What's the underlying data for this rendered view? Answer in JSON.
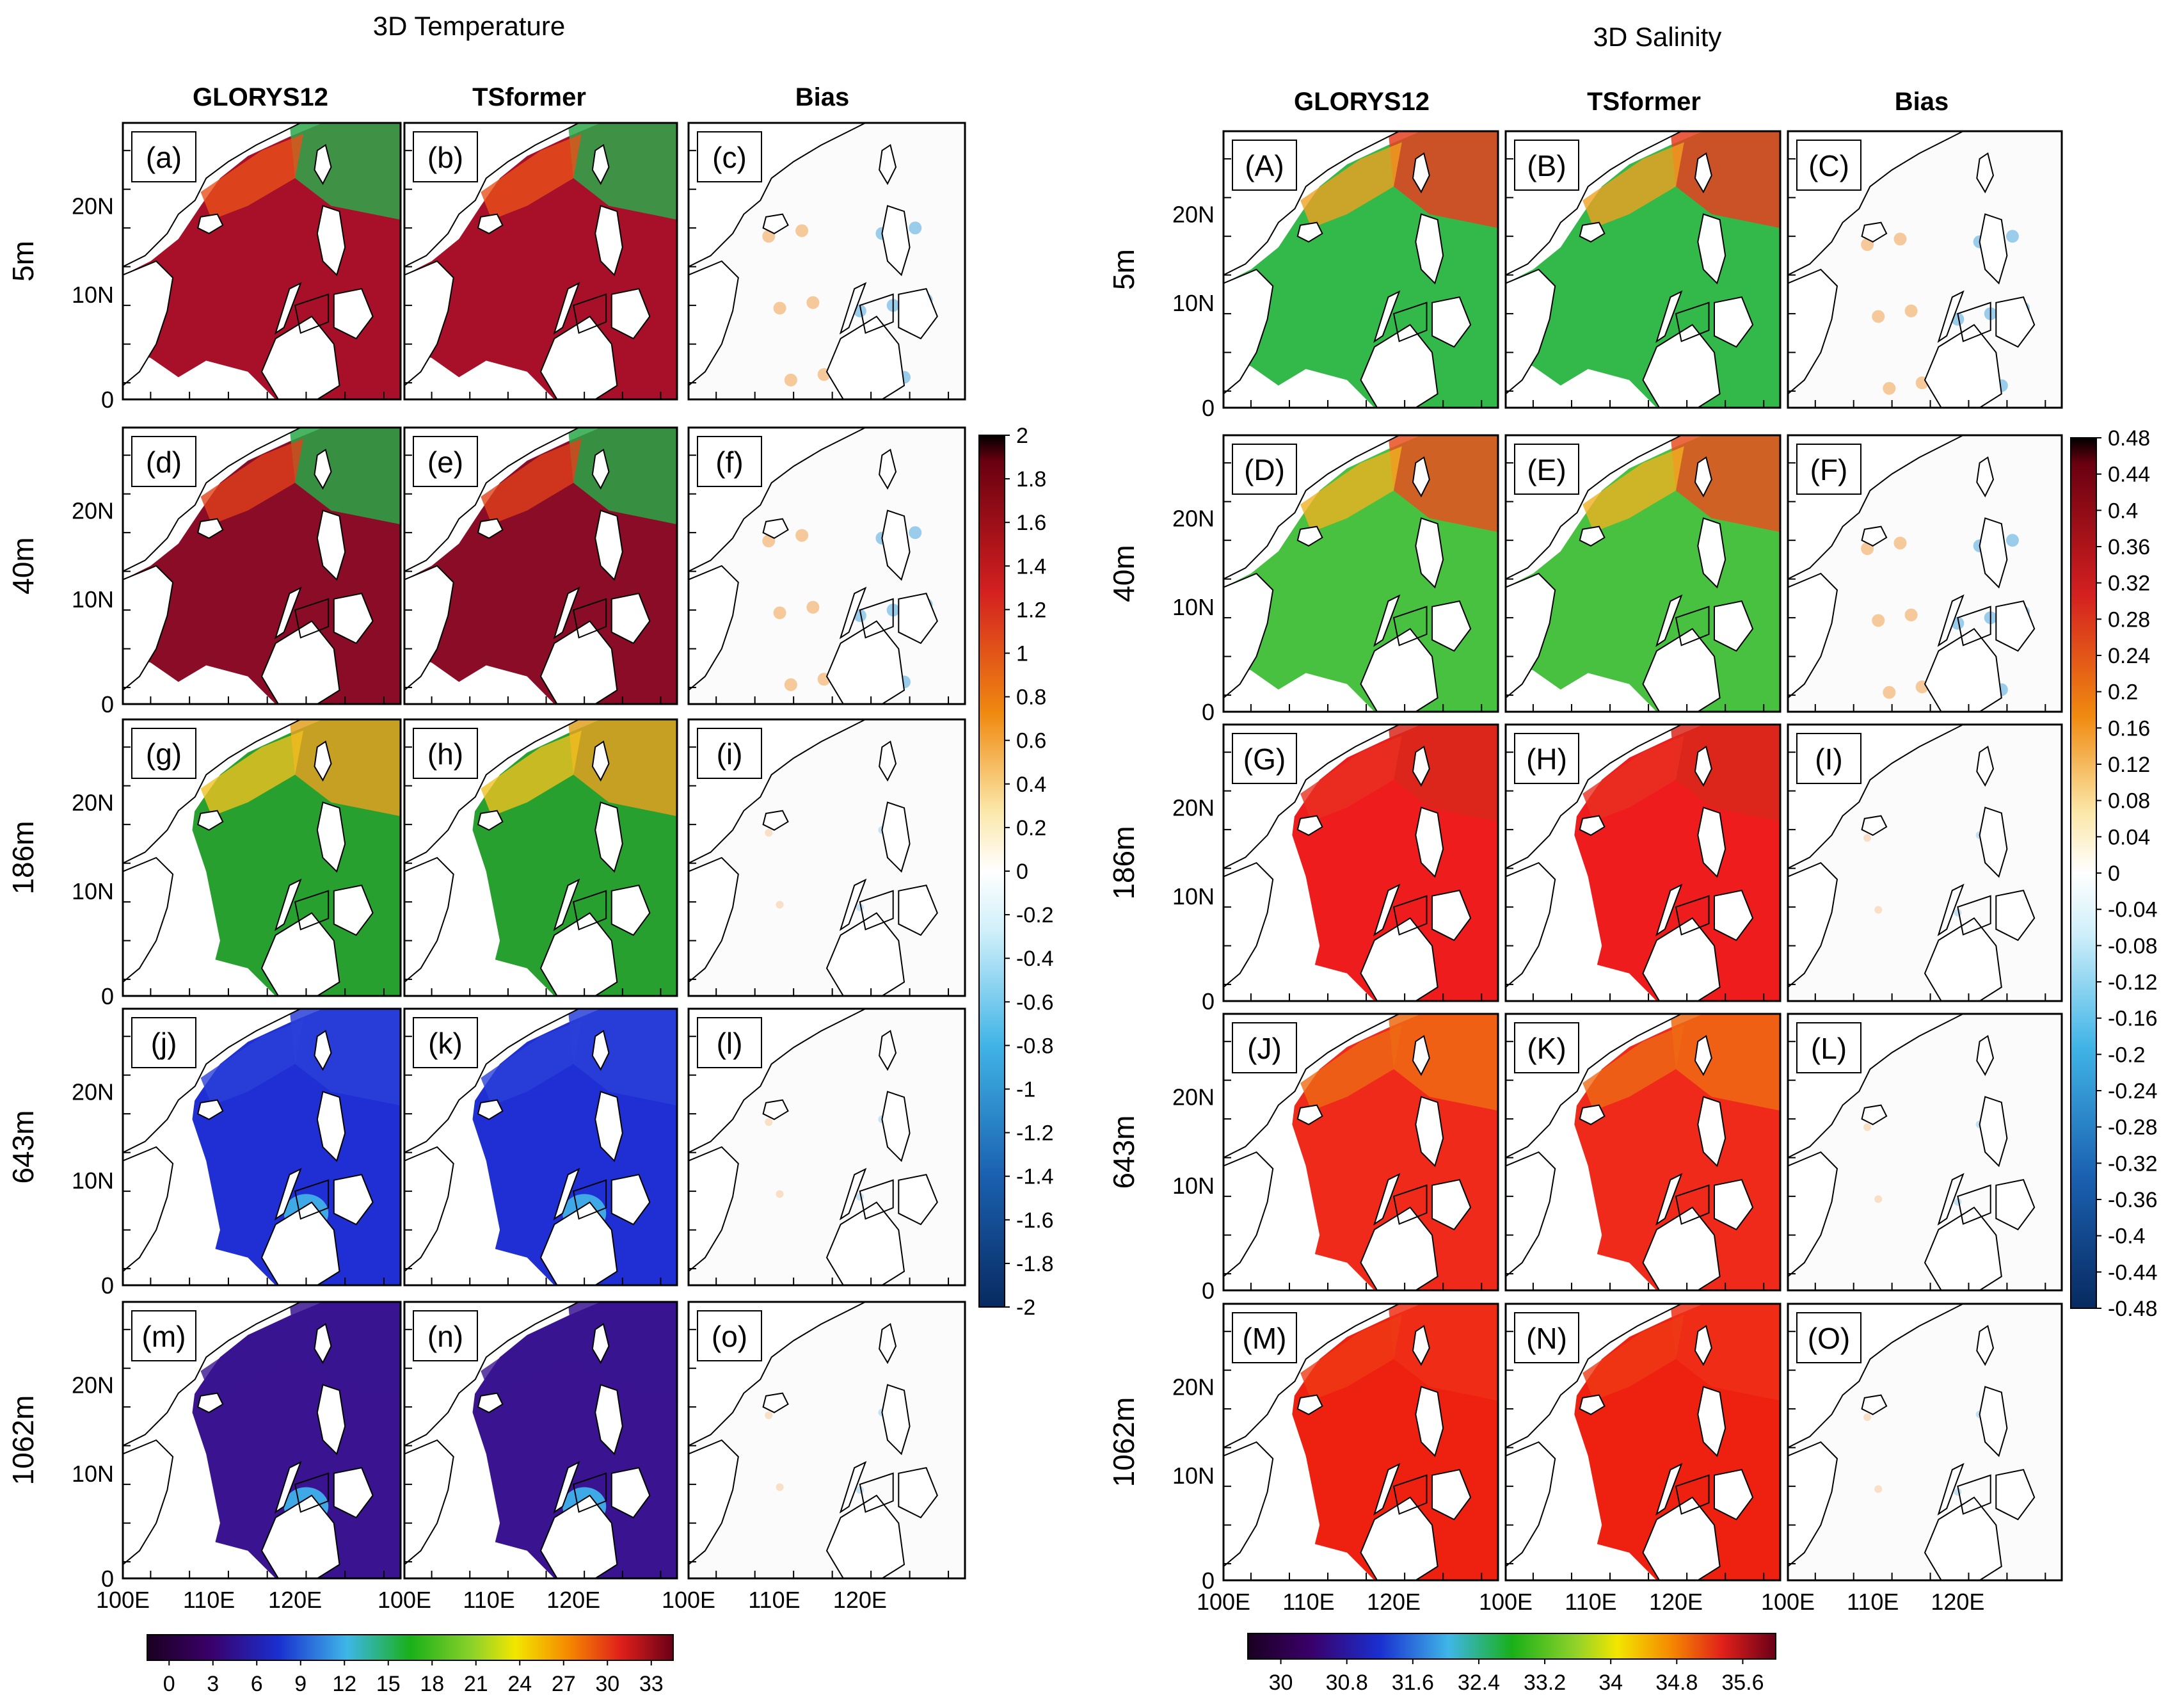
{
  "figure": {
    "temperature": {
      "title": "3D Temperature",
      "columns": [
        "GLORYS12",
        "TSformer",
        "Bias"
      ],
      "depths": [
        "5m",
        "40m",
        "186m",
        "643m",
        "1062m"
      ],
      "panel_labels": [
        "(a)",
        "(b)",
        "(c)",
        "(d)",
        "(e)",
        "(f)",
        "(g)",
        "(h)",
        "(i)",
        "(j)",
        "(k)",
        "(l)",
        "(m)",
        "(n)",
        "(o)"
      ],
      "field_colorbar": {
        "labels": [
          "0",
          "3",
          "6",
          "9",
          "12",
          "15",
          "18",
          "21",
          "24",
          "27",
          "30",
          "33"
        ],
        "min": 0,
        "max": 33
      },
      "bias_colorbar": {
        "labels": [
          "2",
          "1.8",
          "1.6",
          "1.4",
          "1.2",
          "1",
          "0.8",
          "0.6",
          "0.4",
          "0.2",
          "0",
          "-0.2",
          "-0.4",
          "-0.6",
          "-0.8",
          "-1",
          "-1.2",
          "-1.4",
          "-1.6",
          "-1.8",
          "-2"
        ],
        "min": -2,
        "max": 2
      }
    },
    "salinity": {
      "title": "3D Salinity",
      "columns": [
        "GLORYS12",
        "TSformer",
        "Bias"
      ],
      "depths": [
        "5m",
        "40m",
        "186m",
        "643m",
        "1062m"
      ],
      "panel_labels": [
        "(A)",
        "(B)",
        "(C)",
        "(D)",
        "(E)",
        "(F)",
        "(G)",
        "(H)",
        "(I)",
        "(J)",
        "(K)",
        "(L)",
        "(M)",
        "(N)",
        "(O)"
      ],
      "field_colorbar": {
        "labels": [
          "30",
          "30.8",
          "31.6",
          "32.4",
          "33.2",
          "34",
          "34.8",
          "35.6"
        ],
        "min": 30,
        "max": 36
      },
      "bias_colorbar": {
        "labels": [
          "0.48",
          "0.44",
          "0.4",
          "0.36",
          "0.32",
          "0.28",
          "0.24",
          "0.2",
          "0.16",
          "0.12",
          "0.08",
          "0.04",
          "0",
          "-0.04",
          "-0.08",
          "-0.12",
          "-0.16",
          "-0.2",
          "-0.24",
          "-0.28",
          "-0.32",
          "-0.36",
          "-0.4",
          "-0.44",
          "-0.48"
        ],
        "min": -0.5,
        "max": 0.5
      }
    },
    "lat_ticks": [
      "20N",
      "10N",
      "0"
    ],
    "lon_ticks": [
      "100E",
      "110E",
      "120E"
    ],
    "colors": {
      "land": "#ffffff",
      "coast": "#000000",
      "frame": "#000000"
    }
  }
}
